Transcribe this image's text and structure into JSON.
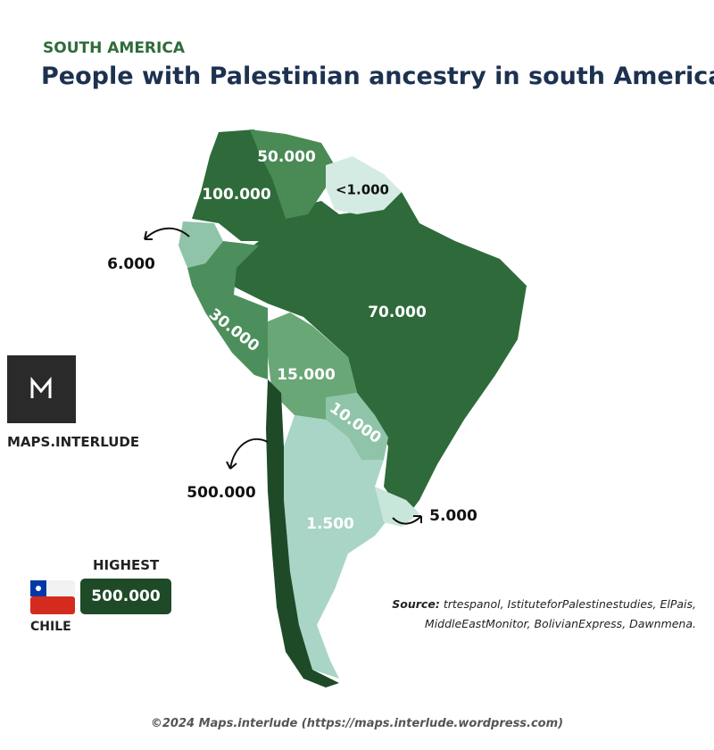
{
  "header": {
    "kicker": "SOUTH AMERICA",
    "title": "People with Palestinian ancestry in south America"
  },
  "regions": [
    {
      "label": "50.000"
    },
    {
      "label": "<1.000"
    },
    {
      "label": "100.000"
    },
    {
      "label": "6.000"
    },
    {
      "label": "70.000"
    },
    {
      "label": "30.000"
    },
    {
      "label": "15.000"
    },
    {
      "label": "10.000"
    },
    {
      "label": "500.000"
    },
    {
      "label": "1.500"
    },
    {
      "label": "5.000"
    }
  ],
  "logo": {
    "name": "MAPS.INTERLUDE"
  },
  "highlight": {
    "heading": "HIGHEST",
    "value": "500.000",
    "country": "CHILE"
  },
  "source": {
    "label": "Source:",
    "text": "trtespanol, IstituteforPalestinestudies, ElPais, MiddleEastMonitor, BolivianExpress, Dawnmena."
  },
  "footer": "©2024 Maps.interlude (https://maps.interlude.wordpress.com)"
}
